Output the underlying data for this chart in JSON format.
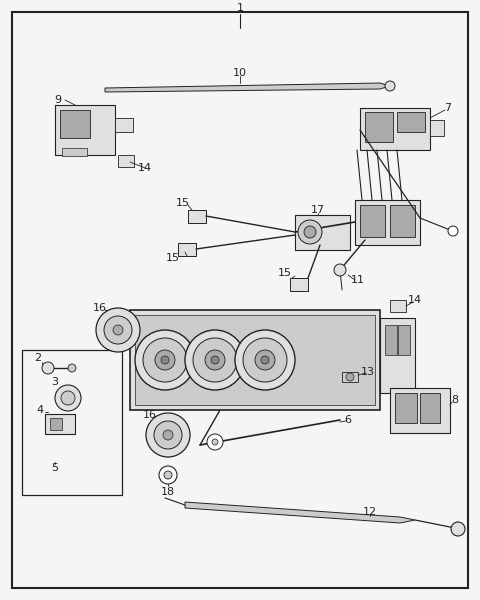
{
  "bg_color": "#f5f5f5",
  "border_color": "#222222",
  "lc": "#222222",
  "dc": "#555555",
  "figsize": [
    4.8,
    6.0
  ],
  "dpi": 100,
  "gray1": "#cccccc",
  "gray2": "#e0e0e0",
  "gray3": "#aaaaaa",
  "white": "#ffffff"
}
